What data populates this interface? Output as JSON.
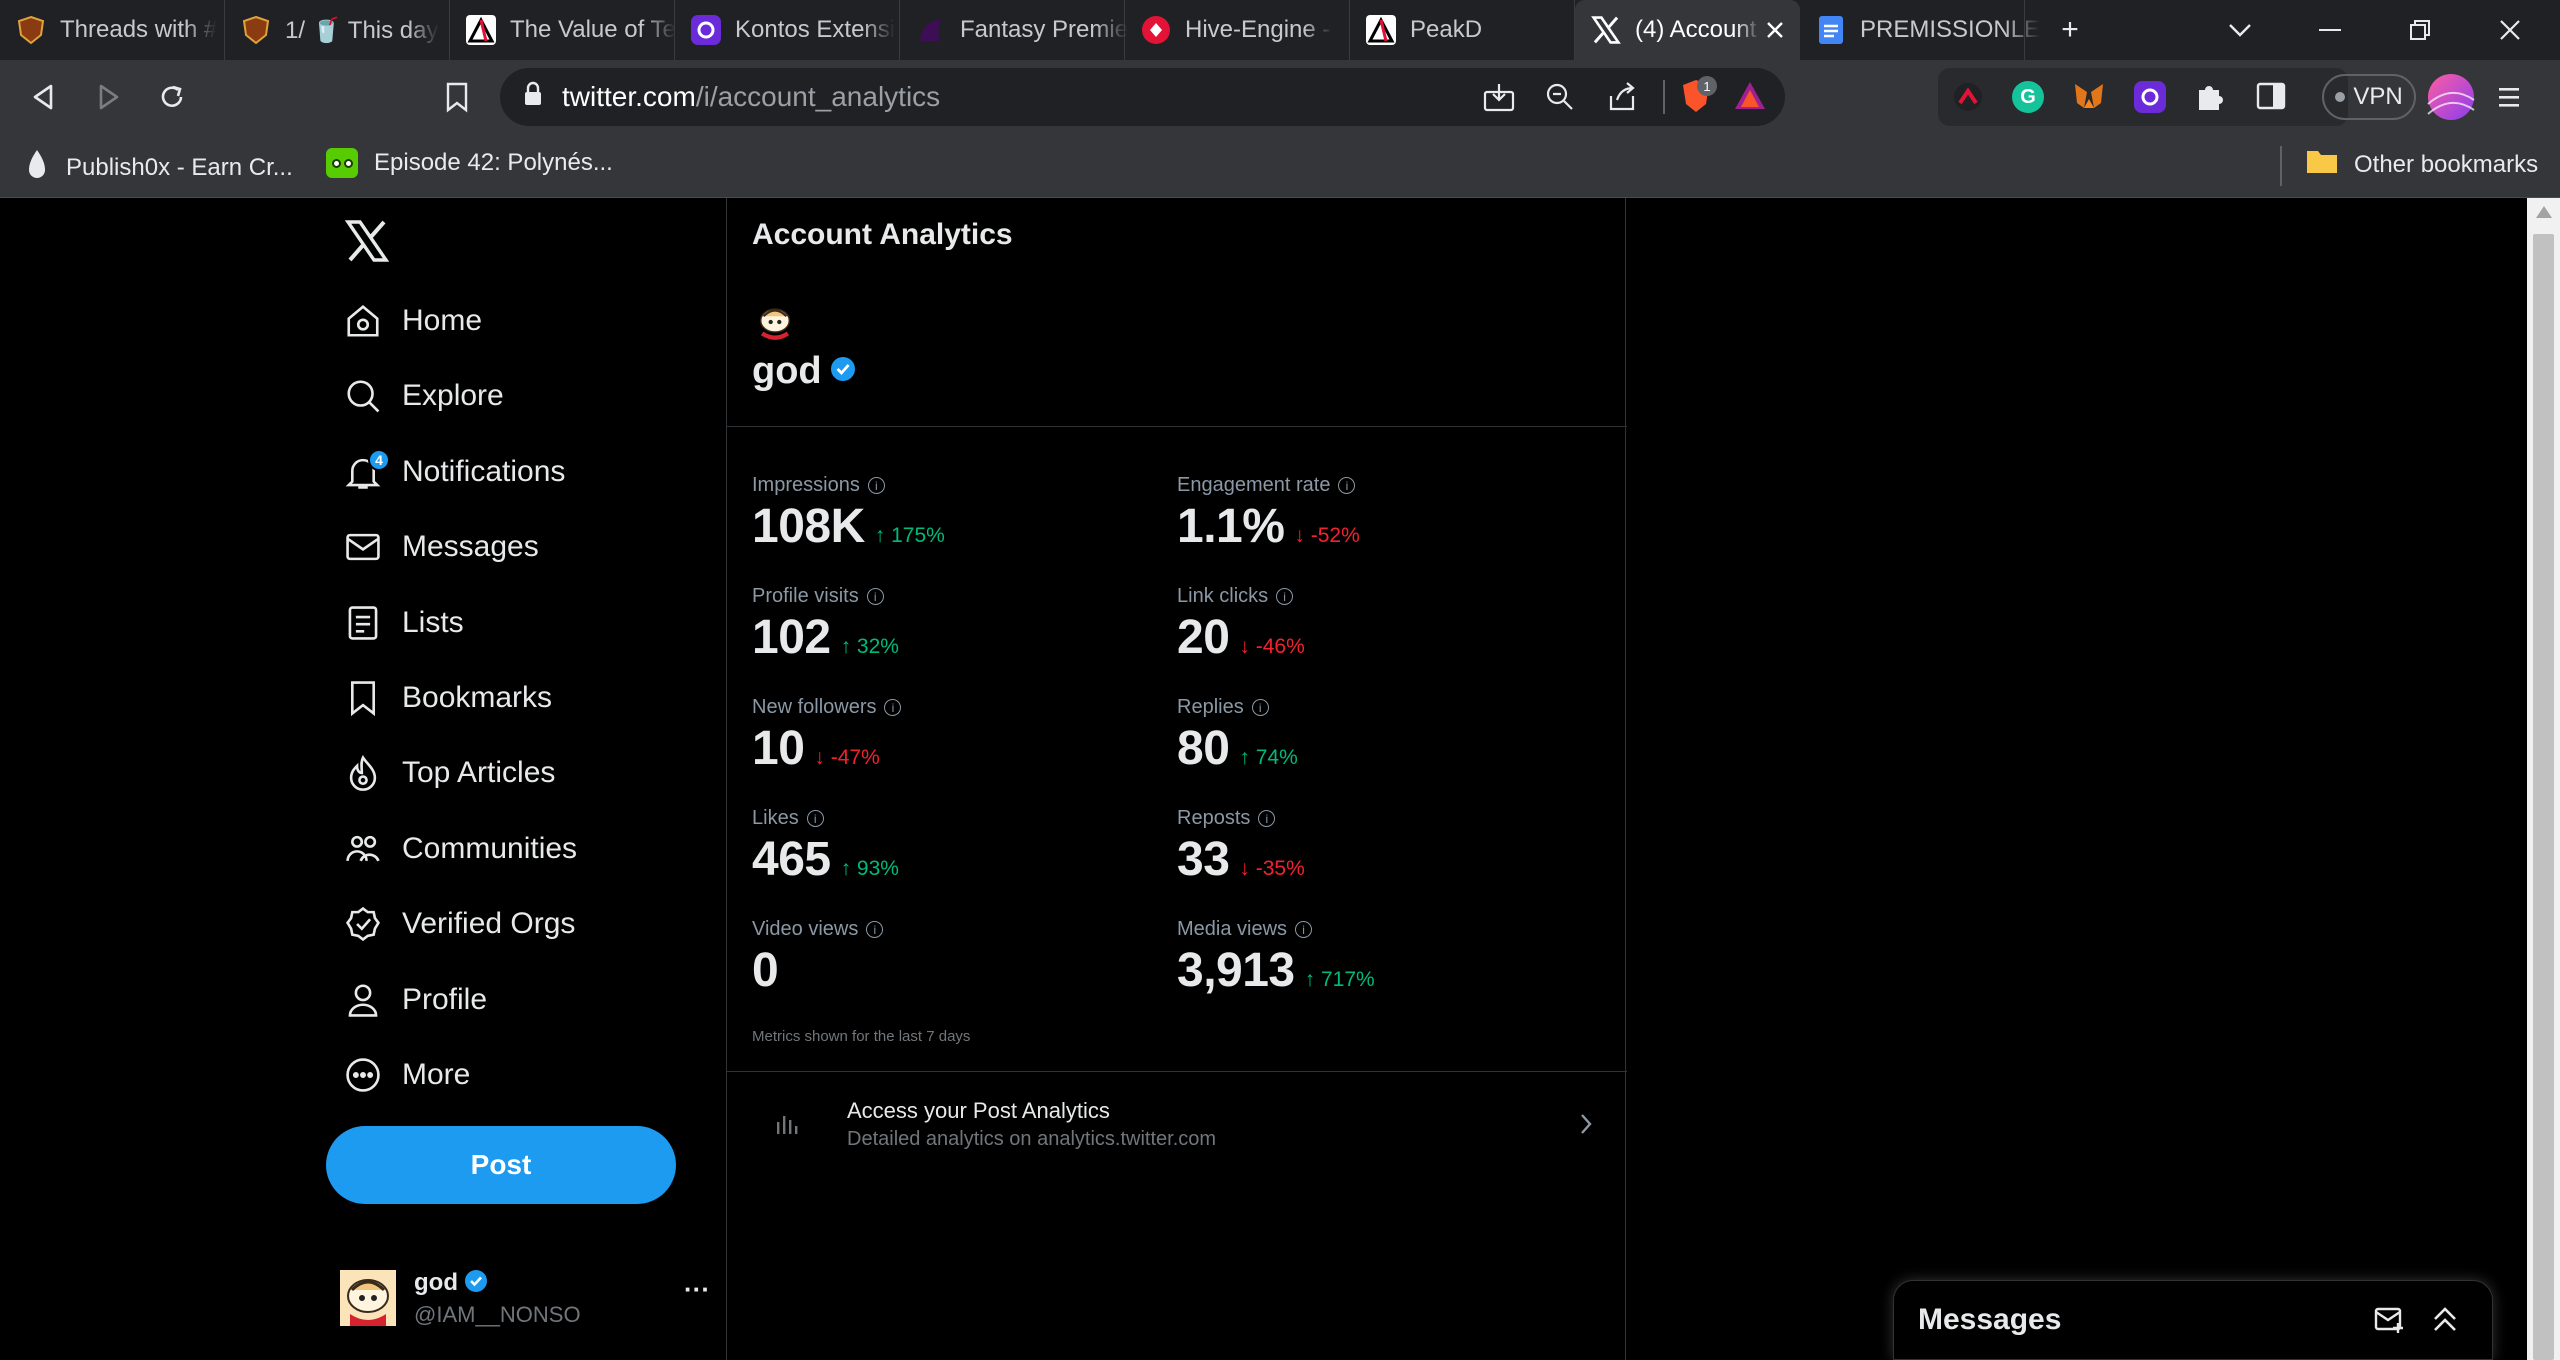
{
  "browser": {
    "tabs": [
      {
        "title": "Threads with #",
        "icon": "shield-lion-icon",
        "color": "#8a3b12"
      },
      {
        "title": "1/ 🥤 This day",
        "icon": "shield-lion-icon",
        "color": "#8a3b12"
      },
      {
        "title": "The Value of Te",
        "icon": "peakd-icon",
        "color": "#ffffff"
      },
      {
        "title": "Kontos Extensi",
        "icon": "kontos-icon",
        "color": "#6b2bd9"
      },
      {
        "title": "Fantasy Premie",
        "icon": "fpl-icon",
        "color": "#3d0e55"
      },
      {
        "title": "Hive-Engine -",
        "icon": "hive-engine-icon",
        "color": "#e31337"
      },
      {
        "title": "PeakD",
        "icon": "peakd-icon",
        "color": "#ffffff"
      },
      {
        "title": "(4) Account",
        "icon": "x-logo-icon",
        "color": "#ffffff",
        "active": true
      },
      {
        "title": "PREMISSIONLE",
        "icon": "docs-icon",
        "color": "#4285f4"
      }
    ],
    "url_host": "twitter.com",
    "url_path": "/i/account_analytics",
    "brave_badge": "1",
    "vpn_label": "VPN",
    "bookmarks": [
      {
        "label": "Publish0x - Earn Cr...",
        "icon": "publish0x-icon"
      },
      {
        "label": "Episode 42: Polynés...",
        "icon": "duolingo-icon"
      }
    ],
    "other_bookmarks": "Other bookmarks"
  },
  "nav": {
    "items": [
      {
        "label": "Home",
        "icon": "home-icon"
      },
      {
        "label": "Explore",
        "icon": "search-icon"
      },
      {
        "label": "Notifications",
        "icon": "bell-icon",
        "badge": "4"
      },
      {
        "label": "Messages",
        "icon": "envelope-icon"
      },
      {
        "label": "Lists",
        "icon": "list-icon"
      },
      {
        "label": "Bookmarks",
        "icon": "bookmark-icon"
      },
      {
        "label": "Top Articles",
        "icon": "flame-icon"
      },
      {
        "label": "Communities",
        "icon": "communities-icon"
      },
      {
        "label": "Verified Orgs",
        "icon": "verified-badge-icon"
      },
      {
        "label": "Profile",
        "icon": "person-icon"
      },
      {
        "label": "More",
        "icon": "more-circle-icon"
      }
    ],
    "post_label": "Post",
    "account": {
      "name": "god",
      "handle": "@IAM__NONSO",
      "more": "···"
    }
  },
  "analytics": {
    "title": "Account Analytics",
    "profile_name": "god",
    "metrics": [
      {
        "label": "Impressions",
        "value": "108K",
        "change": "175%",
        "direction": "up"
      },
      {
        "label": "Engagement rate",
        "value": "1.1%",
        "change": "-52%",
        "direction": "down"
      },
      {
        "label": "Profile visits",
        "value": "102",
        "change": "32%",
        "direction": "up"
      },
      {
        "label": "Link clicks",
        "value": "20",
        "change": "-46%",
        "direction": "down"
      },
      {
        "label": "New followers",
        "value": "10",
        "change": "-47%",
        "direction": "down"
      },
      {
        "label": "Replies",
        "value": "80",
        "change": "74%",
        "direction": "up"
      },
      {
        "label": "Likes",
        "value": "465",
        "change": "93%",
        "direction": "up"
      },
      {
        "label": "Reposts",
        "value": "33",
        "change": "-35%",
        "direction": "down"
      },
      {
        "label": "Video views",
        "value": "0",
        "change": "",
        "direction": ""
      },
      {
        "label": "Media views",
        "value": "3,913",
        "change": "717%",
        "direction": "up"
      }
    ],
    "note": "Metrics shown for the last 7 days",
    "access_title": "Access your Post Analytics",
    "access_subtitle": "Detailed analytics on analytics.twitter.com"
  },
  "messages_dock": {
    "title": "Messages"
  },
  "colors": {
    "accent": "#1d9bf0",
    "up": "#00ba7c",
    "down": "#f4212e"
  }
}
